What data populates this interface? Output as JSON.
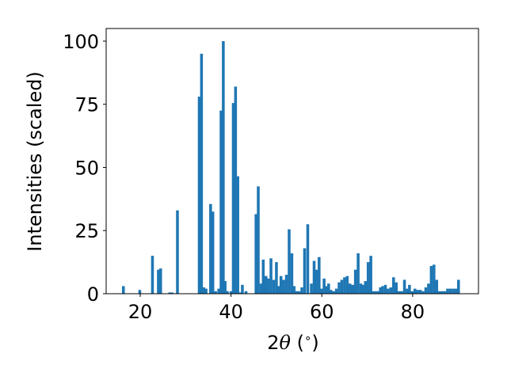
{
  "chart_data": {
    "type": "bar",
    "title": "",
    "ylabel": "Intensities (scaled)",
    "xlabel_parts": {
      "prefix": "2",
      "symbol": "θ",
      "suffix": " (",
      "degree": "∘",
      "close": ")"
    },
    "xlim": [
      12.5,
      94.5
    ],
    "ylim": [
      0,
      105
    ],
    "x_ticks": [
      20,
      40,
      60,
      80
    ],
    "y_ticks": [
      0,
      25,
      50,
      75,
      100
    ],
    "bar_width": 0.62,
    "color": "#1f77b4",
    "grid": false,
    "x": [
      16.3,
      19.9,
      22.7,
      24.0,
      24.5,
      26.5,
      27.0,
      28.2,
      33.0,
      33.5,
      34.0,
      34.5,
      35.5,
      36.0,
      36.6,
      37.3,
      37.8,
      38.3,
      38.7,
      39.2,
      40.0,
      40.5,
      41.0,
      41.5,
      42.0,
      42.5,
      43.3,
      45.5,
      46.0,
      46.6,
      47.1,
      47.7,
      48.2,
      48.8,
      49.4,
      50.0,
      50.5,
      51.0,
      51.6,
      52.2,
      52.8,
      53.4,
      53.9,
      54.4,
      55.0,
      55.6,
      56.2,
      56.9,
      57.7,
      58.3,
      58.8,
      59.4,
      59.9,
      60.5,
      61.0,
      61.5,
      62.0,
      62.6,
      63.2,
      63.8,
      64.4,
      65.0,
      65.6,
      66.2,
      66.8,
      67.4,
      68.0,
      68.6,
      69.1,
      69.6,
      70.2,
      70.8,
      71.3,
      71.9,
      72.4,
      72.9,
      73.4,
      74.0,
      74.6,
      75.2,
      75.8,
      76.4,
      77.0,
      77.6,
      78.2,
      78.8,
      79.3,
      79.9,
      80.5,
      81.1,
      81.7,
      82.3,
      82.9,
      83.5,
      84.1,
      84.7,
      85.3,
      85.9,
      86.5,
      87.1,
      87.7,
      88.3,
      88.9,
      89.5,
      90.1
    ],
    "values": [
      3,
      1.5,
      15,
      9.5,
      10,
      0.5,
      0.5,
      33,
      78,
      95,
      2.5,
      2,
      35.5,
      32.5,
      1,
      2,
      72.5,
      100,
      5,
      1,
      1,
      75.5,
      82,
      46.5,
      0.5,
      3.5,
      1,
      31.5,
      42.5,
      4,
      13.5,
      7,
      6,
      14,
      5.5,
      12.5,
      3,
      7,
      5.5,
      7.5,
      25.5,
      16,
      3,
      1,
      1,
      2.5,
      18,
      27.5,
      4,
      13,
      9.5,
      14.5,
      2,
      6,
      3,
      4,
      1.5,
      1,
      2,
      4.5,
      5.5,
      6.5,
      7,
      4,
      3.5,
      9.5,
      16,
      4,
      3.5,
      5,
      12.5,
      15,
      1,
      1,
      1,
      2.5,
      3,
      3.5,
      2,
      2.5,
      6.5,
      4.5,
      1,
      1,
      5.5,
      2,
      3.5,
      1,
      2,
      1.5,
      1.5,
      1,
      2.5,
      4,
      11,
      11.5,
      5.5,
      1,
      1,
      1,
      2,
      2,
      2,
      2,
      5.5
    ]
  }
}
